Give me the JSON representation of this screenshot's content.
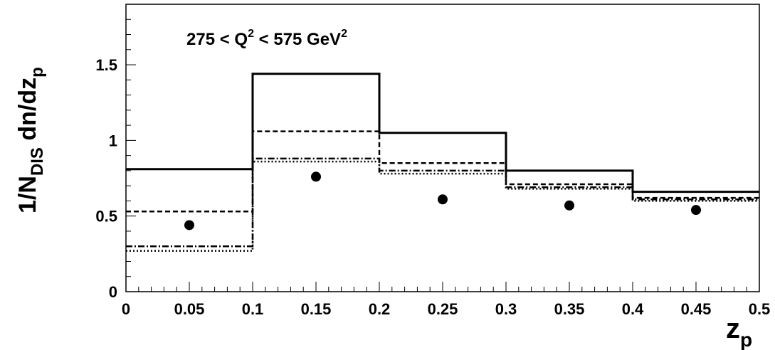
{
  "chart_data": {
    "type": "step-histogram",
    "annotation": {
      "prefix": "275 < Q",
      "exp1": "2",
      "middle": " < 575 GeV",
      "exp2": "2"
    },
    "xlabel": {
      "main": "z",
      "sub": "p"
    },
    "ylabel": {
      "part1": "1/N",
      "sub1": "DIS",
      "part2": " dn/dz",
      "sub2": "p"
    },
    "xlim": [
      0,
      0.5
    ],
    "ylim": [
      0,
      1.9
    ],
    "x_ticks": [
      "0",
      "0.05",
      "0.1",
      "0.15",
      "0.2",
      "0.25",
      "0.3",
      "0.35",
      "0.4",
      "0.45",
      "0.5"
    ],
    "y_ticks": [
      "0",
      "0.5",
      "1",
      "1.5"
    ],
    "bin_edges": [
      0,
      0.1,
      0.2,
      0.3,
      0.4,
      0.5
    ],
    "grid": false,
    "series": [
      {
        "style": "solid",
        "values": [
          0.81,
          1.44,
          1.05,
          0.8,
          0.66
        ]
      },
      {
        "style": "dashed",
        "values": [
          0.53,
          1.06,
          0.85,
          0.71,
          0.62
        ]
      },
      {
        "style": "dash-dot",
        "values": [
          0.3,
          0.88,
          0.8,
          0.69,
          0.61
        ]
      },
      {
        "style": "dotted",
        "values": [
          0.27,
          0.86,
          0.78,
          0.68,
          0.6
        ]
      }
    ],
    "points": {
      "style": "filled-circle",
      "x": [
        0.05,
        0.15,
        0.25,
        0.35,
        0.45
      ],
      "y": [
        0.44,
        0.76,
        0.61,
        0.57,
        0.54
      ]
    }
  }
}
